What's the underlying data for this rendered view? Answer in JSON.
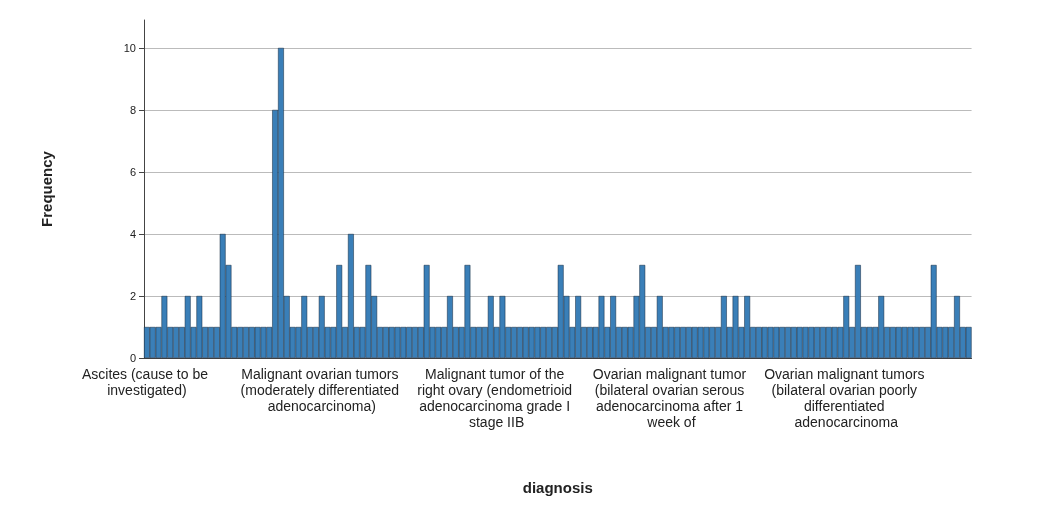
{
  "chart_data": {
    "type": "bar",
    "xlabel": "diagnosis",
    "ylabel": "Frequency",
    "categories": [
      "Ascites (cause to be investigated)",
      null,
      null,
      null,
      null,
      null,
      null,
      null,
      null,
      null,
      null,
      null,
      null,
      null,
      null,
      null,
      null,
      null,
      null,
      null,
      null,
      null,
      null,
      null,
      null,
      null,
      null,
      null,
      null,
      null,
      "Malignant ovarian tumors (moderately differentiated adenocarcinoma)",
      null,
      null,
      null,
      null,
      null,
      null,
      null,
      null,
      null,
      null,
      null,
      null,
      null,
      null,
      null,
      null,
      null,
      null,
      null,
      null,
      null,
      null,
      null,
      null,
      null,
      null,
      null,
      null,
      null,
      "Malignant tumor of the right ovary (endometrioid adenocarcinoma grade I stage IIB",
      null,
      null,
      null,
      null,
      null,
      null,
      null,
      null,
      null,
      null,
      null,
      null,
      null,
      null,
      null,
      null,
      null,
      null,
      null,
      null,
      null,
      null,
      null,
      null,
      null,
      null,
      null,
      null,
      null,
      "Ovarian malignant tumor (bilateral ovarian serous adenocarcinoma after 1 week of",
      null,
      null,
      null,
      null,
      null,
      null,
      null,
      null,
      null,
      null,
      null,
      null,
      null,
      null,
      null,
      null,
      null,
      null,
      null,
      null,
      null,
      null,
      null,
      null,
      null,
      null,
      null,
      null,
      null,
      "Ovarian malignant tumors (bilateral ovarian poorly differentiated adenocarcinoma",
      null,
      null,
      null,
      null,
      null,
      null,
      null,
      null,
      null,
      null,
      null,
      null,
      null,
      null,
      null,
      null,
      null,
      null,
      null,
      null,
      null
    ],
    "values": [
      1,
      1,
      1,
      2,
      1,
      1,
      1,
      2,
      1,
      2,
      1,
      1,
      1,
      4,
      3,
      1,
      1,
      1,
      1,
      1,
      1,
      1,
      8,
      10,
      2,
      1,
      1,
      2,
      1,
      1,
      2,
      1,
      1,
      3,
      1,
      4,
      1,
      1,
      3,
      2,
      1,
      1,
      1,
      1,
      1,
      1,
      1,
      1,
      3,
      1,
      1,
      1,
      2,
      1,
      1,
      3,
      1,
      1,
      1,
      2,
      1,
      2,
      1,
      1,
      1,
      1,
      1,
      1,
      1,
      1,
      1,
      3,
      2,
      1,
      2,
      1,
      1,
      1,
      2,
      1,
      2,
      1,
      1,
      1,
      2,
      3,
      1,
      1,
      2,
      1,
      1,
      1,
      1,
      1,
      1,
      1,
      1,
      1,
      1,
      2,
      1,
      2,
      1,
      2,
      1,
      1,
      1,
      1,
      1,
      1,
      1,
      1,
      1,
      1,
      1,
      1,
      1,
      1,
      1,
      1,
      2,
      1,
      3,
      1,
      1,
      1,
      2,
      1,
      1,
      1,
      1,
      1,
      1,
      1,
      1,
      3,
      1,
      1,
      1,
      2,
      1,
      1
    ],
    "color": "#3a7fb8",
    "ylim": [
      0,
      10.9
    ],
    "yticks": [
      0,
      2,
      4,
      6,
      8,
      10
    ],
    "grid": "y"
  }
}
